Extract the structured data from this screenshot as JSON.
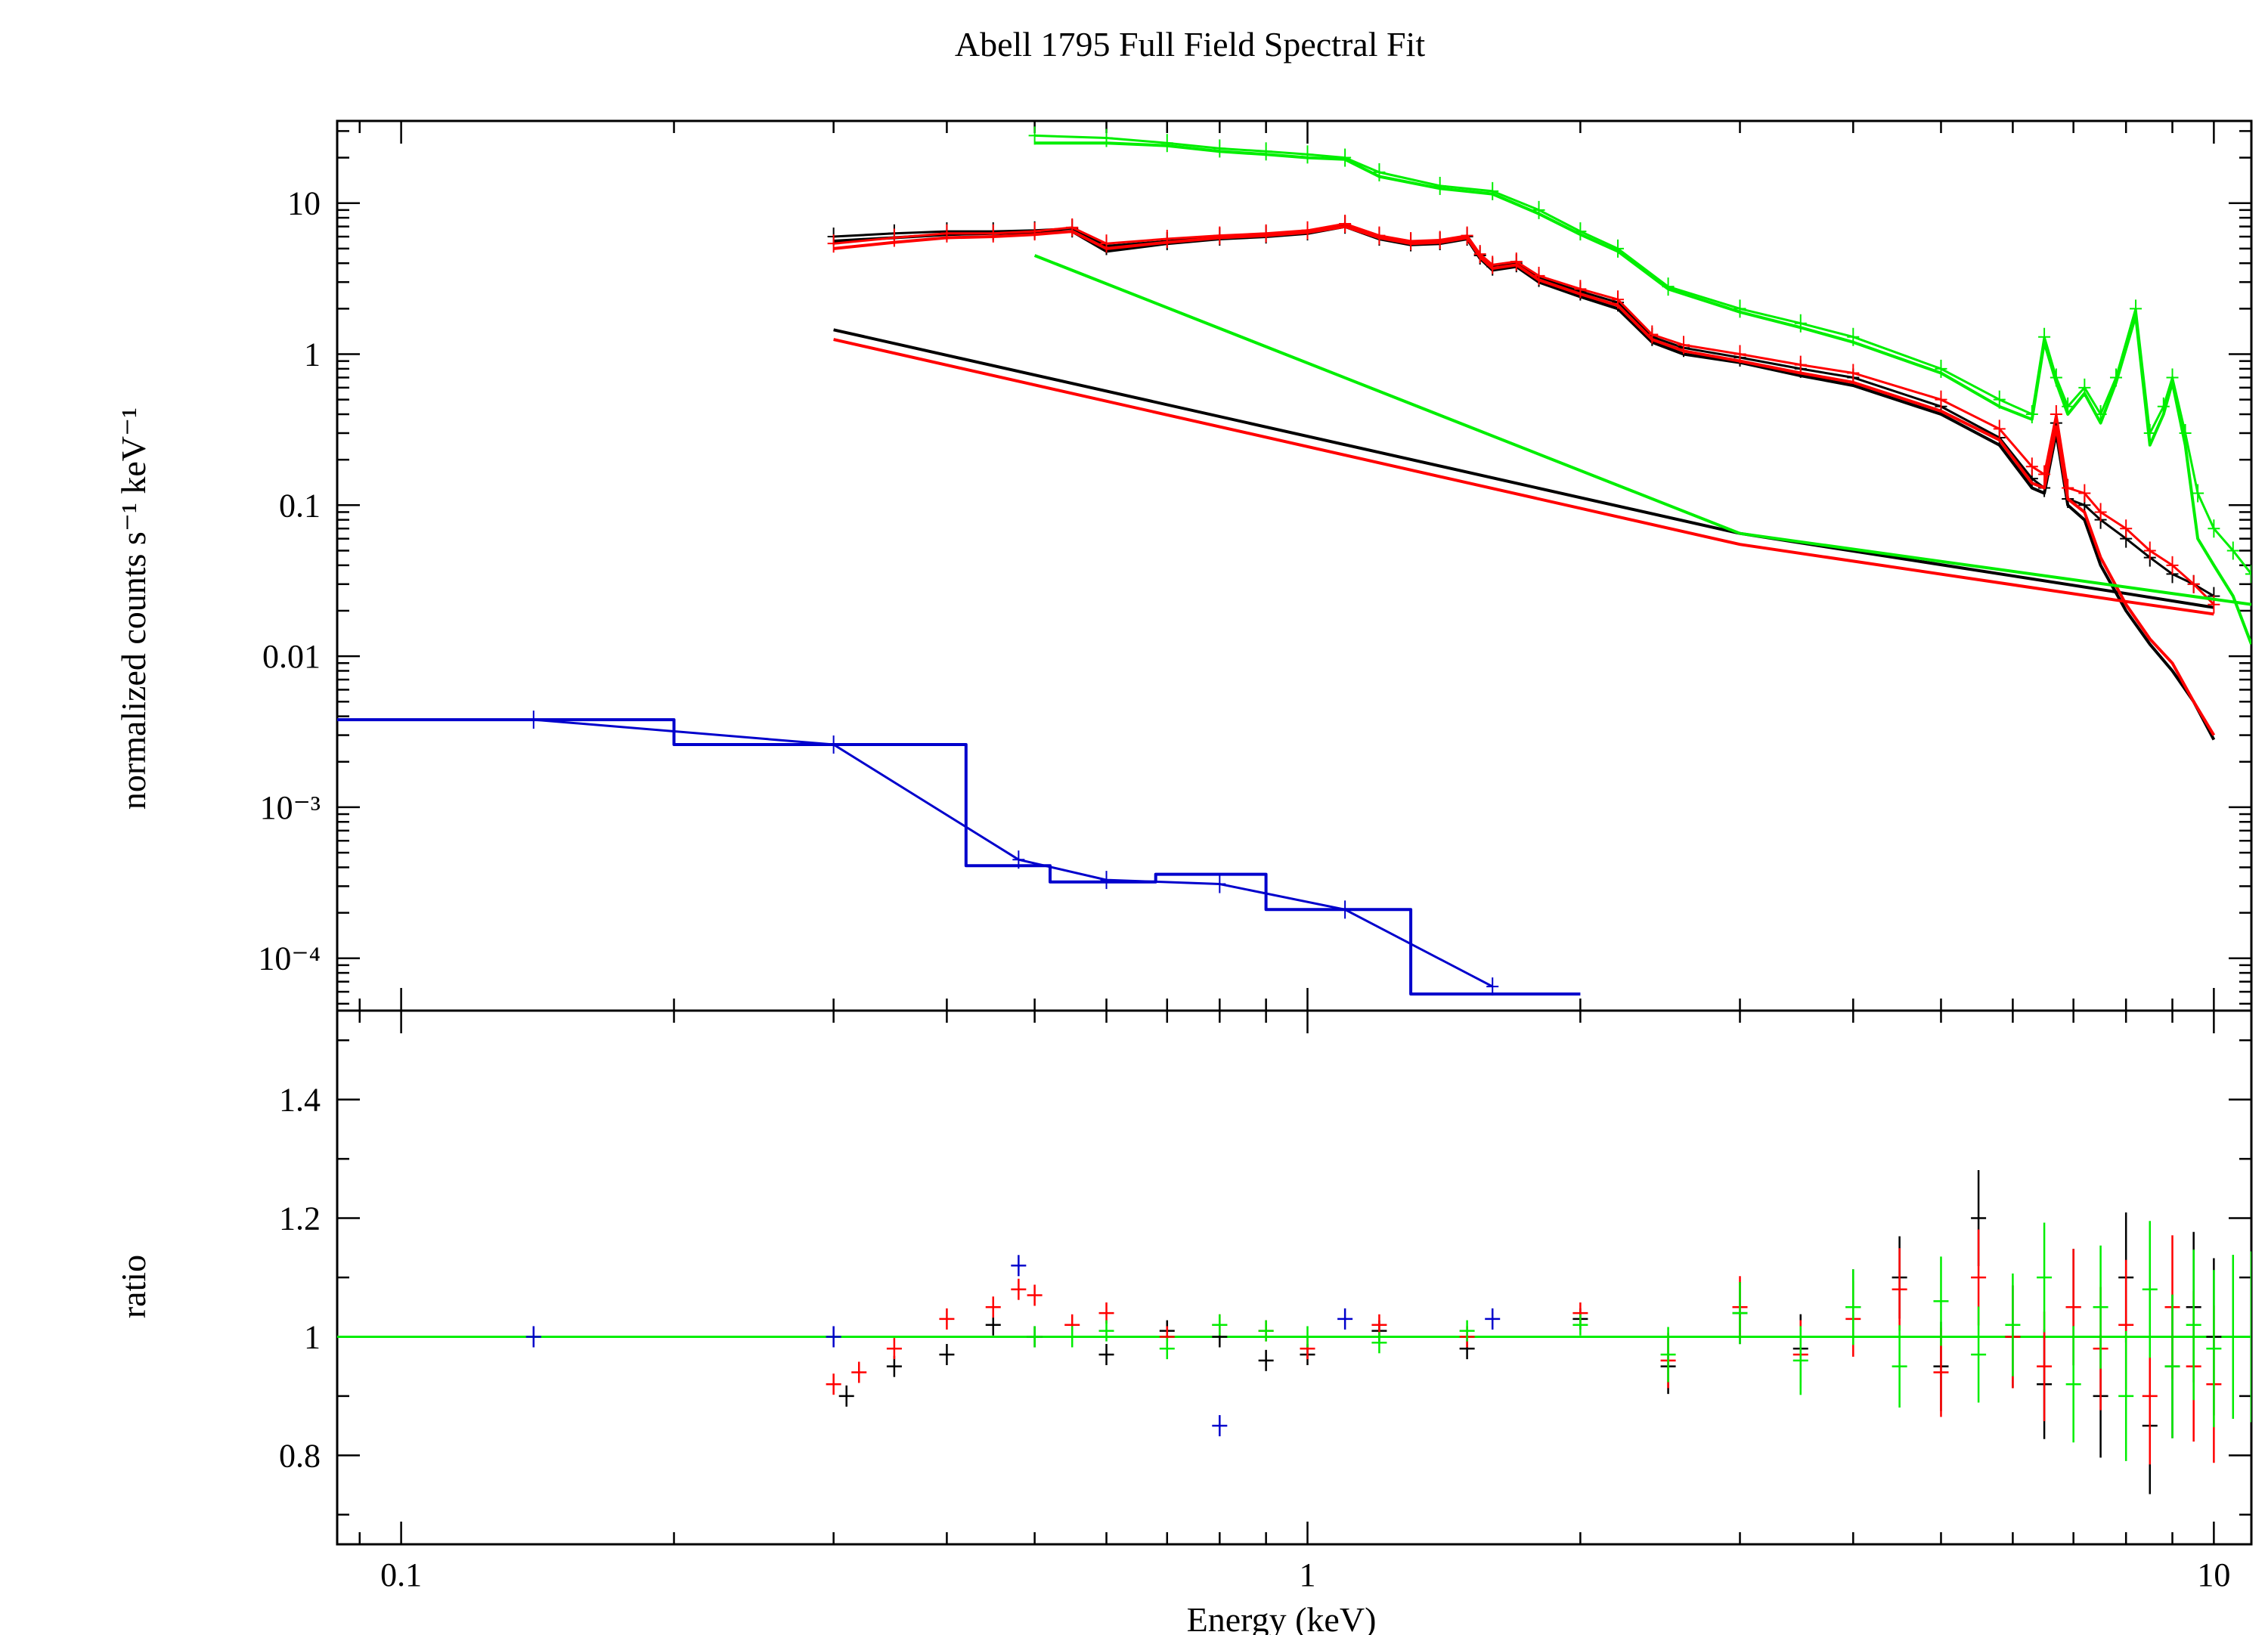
{
  "chart_data": {
    "type": "line",
    "title": "Abell 1795 Full Field Spectral Fit",
    "xlabel": "Energy (keV)",
    "x_scale": "log",
    "xlim": [
      0.085,
      11
    ],
    "x_ticks": [
      0.1,
      1,
      10
    ],
    "x_tick_labels": [
      "0.1",
      "1",
      "10"
    ],
    "panels": [
      {
        "name": "spectrum",
        "ylabel": "normalized counts s⁻¹ keV⁻¹",
        "y_scale": "log",
        "ylim": [
          4.5e-05,
          35
        ],
        "y_ticks": [
          0.0001,
          0.001,
          0.01,
          0.1,
          1,
          10
        ],
        "y_tick_labels": [
          "10⁻⁴",
          "10⁻³",
          "0.01",
          "0.1",
          "1",
          "10"
        ],
        "series": [
          {
            "color": "#000000",
            "kind": "data",
            "x": [
              0.3,
              0.35,
              0.4,
              0.45,
              0.5,
              0.55,
              0.6,
              0.7,
              0.8,
              0.9,
              1.0,
              1.1,
              1.2,
              1.3,
              1.4,
              1.5,
              1.55,
              1.6,
              1.7,
              1.8,
              2.0,
              2.2,
              2.4,
              2.6,
              3.0,
              3.5,
              4.0,
              5.0,
              5.8,
              6.3,
              6.5,
              6.7,
              6.9,
              7.2,
              7.5,
              8.0,
              8.5,
              9.0,
              9.5,
              10.0
            ],
            "y": [
              6.0,
              6.3,
              6.5,
              6.5,
              6.6,
              6.8,
              5.2,
              5.6,
              6.0,
              6.2,
              6.5,
              7.2,
              6.0,
              5.5,
              5.6,
              6.0,
              4.5,
              3.8,
              4.0,
              3.2,
              2.6,
              2.2,
              1.3,
              1.1,
              0.95,
              0.8,
              0.7,
              0.45,
              0.28,
              0.15,
              0.13,
              0.35,
              0.11,
              0.1,
              0.08,
              0.06,
              0.045,
              0.035,
              0.03,
              0.025
            ]
          },
          {
            "color": "#000000",
            "kind": "model",
            "x": [
              0.3,
              0.35,
              0.4,
              0.45,
              0.5,
              0.55,
              0.6,
              0.7,
              0.8,
              0.9,
              1.0,
              1.1,
              1.2,
              1.3,
              1.4,
              1.5,
              1.55,
              1.6,
              1.7,
              1.8,
              2.0,
              2.2,
              2.4,
              2.6,
              3.0,
              3.5,
              4.0,
              5.0,
              5.8,
              6.3,
              6.5,
              6.7,
              6.9,
              7.2,
              7.5,
              8.0,
              8.5,
              9.0,
              9.5,
              10.0
            ],
            "y": [
              5.6,
              5.9,
              6.2,
              6.3,
              6.4,
              6.5,
              4.8,
              5.4,
              5.8,
              6.0,
              6.3,
              7.0,
              5.8,
              5.3,
              5.4,
              5.8,
              4.3,
              3.6,
              3.8,
              3.0,
              2.4,
              2.0,
              1.2,
              1.0,
              0.88,
              0.72,
              0.62,
              0.4,
              0.25,
              0.13,
              0.12,
              0.3,
              0.1,
              0.08,
              0.04,
              0.02,
              0.012,
              0.008,
              0.005,
              0.0028
            ]
          },
          {
            "color": "#000000",
            "kind": "model",
            "x": [
              0.3,
              3.0,
              8.0,
              10.0
            ],
            "y": [
              1.45,
              0.065,
              0.026,
              0.021
            ]
          },
          {
            "color": "#ff0000",
            "kind": "data",
            "x": [
              0.3,
              0.35,
              0.4,
              0.45,
              0.5,
              0.55,
              0.6,
              0.7,
              0.8,
              0.9,
              1.0,
              1.1,
              1.2,
              1.3,
              1.4,
              1.5,
              1.55,
              1.6,
              1.7,
              1.8,
              2.0,
              2.2,
              2.4,
              2.6,
              3.0,
              3.5,
              4.0,
              5.0,
              5.8,
              6.3,
              6.5,
              6.7,
              6.9,
              7.2,
              7.5,
              8.0,
              8.5,
              9.0,
              9.5,
              10.0
            ],
            "y": [
              5.4,
              5.9,
              6.3,
              6.3,
              6.5,
              6.9,
              5.4,
              5.8,
              6.1,
              6.3,
              6.6,
              7.3,
              6.1,
              5.6,
              5.7,
              6.1,
              4.6,
              3.9,
              4.1,
              3.3,
              2.7,
              2.3,
              1.35,
              1.15,
              1.0,
              0.85,
              0.75,
              0.5,
              0.32,
              0.18,
              0.16,
              0.4,
              0.13,
              0.12,
              0.09,
              0.07,
              0.05,
              0.04,
              0.03,
              0.022
            ]
          },
          {
            "color": "#ff0000",
            "kind": "model",
            "x": [
              0.3,
              0.35,
              0.4,
              0.45,
              0.5,
              0.55,
              0.6,
              0.7,
              0.8,
              0.9,
              1.0,
              1.1,
              1.2,
              1.3,
              1.4,
              1.5,
              1.55,
              1.6,
              1.7,
              1.8,
              2.0,
              2.2,
              2.4,
              2.6,
              3.0,
              3.5,
              4.0,
              5.0,
              5.8,
              6.3,
              6.5,
              6.7,
              6.9,
              7.2,
              7.5,
              8.0,
              8.5,
              9.0,
              9.5,
              10.0
            ],
            "y": [
              5.0,
              5.5,
              5.9,
              6.0,
              6.2,
              6.5,
              5.0,
              5.5,
              5.9,
              6.1,
              6.4,
              7.0,
              5.9,
              5.4,
              5.5,
              5.9,
              4.4,
              3.7,
              3.9,
              3.1,
              2.5,
              2.1,
              1.25,
              1.05,
              0.9,
              0.75,
              0.65,
              0.42,
              0.27,
              0.14,
              0.13,
              0.33,
              0.11,
              0.09,
              0.045,
              0.022,
              0.013,
              0.009,
              0.005,
              0.003
            ]
          },
          {
            "color": "#ff0000",
            "kind": "model",
            "x": [
              0.3,
              3.0,
              8.0,
              10.0
            ],
            "y": [
              1.25,
              0.055,
              0.023,
              0.019
            ]
          },
          {
            "color": "#00ee00",
            "kind": "data",
            "x": [
              0.5,
              0.6,
              0.7,
              0.8,
              0.9,
              1.0,
              1.1,
              1.2,
              1.4,
              1.6,
              1.8,
              2.0,
              2.2,
              2.5,
              3.0,
              3.5,
              4.0,
              5.0,
              5.8,
              6.3,
              6.5,
              6.7,
              6.9,
              7.2,
              7.5,
              7.8,
              8.2,
              8.5,
              8.8,
              9.0,
              9.3,
              9.6,
              10.0,
              10.5,
              11.0
            ],
            "y": [
              28,
              27,
              25,
              23,
              22,
              21,
              20,
              16,
              13,
              12,
              9,
              6.5,
              5.0,
              2.8,
              2.0,
              1.6,
              1.3,
              0.8,
              0.5,
              0.4,
              1.3,
              0.7,
              0.45,
              0.6,
              0.4,
              0.7,
              2.0,
              0.3,
              0.45,
              0.7,
              0.3,
              0.12,
              0.07,
              0.05,
              0.035
            ]
          },
          {
            "color": "#00ee00",
            "kind": "model",
            "x": [
              0.5,
              0.6,
              0.7,
              0.8,
              0.9,
              1.0,
              1.1,
              1.2,
              1.4,
              1.6,
              1.8,
              2.0,
              2.2,
              2.5,
              3.0,
              3.5,
              4.0,
              5.0,
              5.8,
              6.3,
              6.5,
              6.7,
              6.9,
              7.2,
              7.5,
              7.8,
              8.2,
              8.5,
              8.8,
              9.0,
              9.3,
              9.6,
              10.0,
              10.5,
              11.0
            ],
            "y": [
              25,
              25,
              24,
              22,
              21,
              20,
              19.5,
              15,
              12.5,
              11.5,
              8.5,
              6.2,
              4.8,
              2.7,
              1.9,
              1.5,
              1.2,
              0.75,
              0.45,
              0.37,
              1.2,
              0.65,
              0.4,
              0.55,
              0.35,
              0.65,
              1.8,
              0.25,
              0.4,
              0.65,
              0.25,
              0.06,
              0.04,
              0.025,
              0.012
            ]
          },
          {
            "color": "#00ee00",
            "kind": "model",
            "x": [
              0.5,
              3.0,
              11.0
            ],
            "y": [
              4.5,
              0.065,
              0.022
            ]
          },
          {
            "color": "#0000cc",
            "kind": "data",
            "x": [
              0.14,
              0.3,
              0.48,
              0.6,
              0.8,
              1.1,
              1.6
            ],
            "y": [
              0.0038,
              0.0026,
              0.00045,
              0.00033,
              0.00031,
              0.00021,
              6.5e-05
            ]
          },
          {
            "color": "#0000cc",
            "kind": "model",
            "step": true,
            "x": [
              0.085,
              0.2,
              0.2,
              0.42,
              0.42,
              0.52,
              0.52,
              0.68,
              0.68,
              0.9,
              0.9,
              1.3,
              1.3,
              2.0
            ],
            "y": [
              0.0038,
              0.0038,
              0.0026,
              0.0026,
              0.00041,
              0.00041,
              0.00032,
              0.00032,
              0.00036,
              0.00036,
              0.00021,
              0.00021,
              5.8e-05,
              5.8e-05
            ]
          }
        ]
      },
      {
        "name": "ratio",
        "ylabel": "ratio",
        "y_scale": "linear",
        "ylim": [
          0.65,
          1.55
        ],
        "y_ticks": [
          0.8,
          1,
          1.2,
          1.4
        ],
        "y_tick_labels": [
          "0.8",
          "1",
          "1.2",
          "1.4"
        ],
        "reference_line": 1,
        "series": [
          {
            "color": "#000000",
            "x": [
              0.31,
              0.35,
              0.4,
              0.45,
              0.5,
              0.6,
              0.7,
              0.8,
              0.9,
              1.0,
              1.2,
              1.5,
              2.0,
              2.5,
              3.0,
              3.5,
              4.0,
              4.5,
              5.0,
              5.5,
              6.0,
              6.5,
              7.0,
              7.5,
              8.0,
              8.5,
              9.0,
              9.5,
              10.0
            ],
            "y": [
              0.9,
              0.95,
              0.97,
              1.02,
              1.0,
              0.97,
              1.01,
              1.0,
              0.96,
              0.97,
              1.01,
              0.98,
              1.03,
              0.95,
              1.04,
              0.98,
              1.05,
              1.1,
              0.95,
              1.2,
              1.0,
              0.92,
              1.05,
              0.9,
              1.1,
              0.85,
              0.95,
              1.05,
              1.0
            ]
          },
          {
            "color": "#ff0000",
            "x": [
              0.3,
              0.32,
              0.35,
              0.4,
              0.45,
              0.48,
              0.5,
              0.55,
              0.6,
              0.7,
              0.8,
              0.9,
              1.0,
              1.2,
              1.5,
              2.0,
              2.5,
              3.0,
              3.5,
              4.0,
              4.5,
              5.0,
              5.5,
              6.0,
              6.5,
              7.0,
              7.5,
              8.0,
              8.5,
              9.0,
              9.5,
              10.0
            ],
            "y": [
              0.92,
              0.94,
              0.98,
              1.03,
              1.05,
              1.08,
              1.07,
              1.02,
              1.04,
              1.0,
              1.02,
              1.01,
              0.98,
              1.02,
              1.0,
              1.04,
              0.96,
              1.05,
              0.97,
              1.03,
              1.08,
              0.94,
              1.1,
              1.0,
              0.95,
              1.05,
              0.98,
              1.02,
              0.9,
              1.05,
              0.95,
              0.92
            ]
          },
          {
            "color": "#00ee00",
            "x": [
              0.5,
              0.55,
              0.6,
              0.7,
              0.8,
              0.9,
              1.0,
              1.2,
              1.5,
              2.0,
              2.5,
              3.0,
              3.5,
              4.0,
              4.5,
              5.0,
              5.5,
              6.0,
              6.5,
              7.0,
              7.5,
              8.0,
              8.5,
              9.0,
              9.5,
              10.0,
              10.5,
              11.0
            ],
            "y": [
              1.0,
              1.0,
              1.01,
              0.98,
              1.02,
              1.01,
              1.0,
              0.99,
              1.01,
              1.02,
              0.97,
              1.04,
              0.96,
              1.05,
              0.95,
              1.06,
              0.97,
              1.02,
              1.1,
              0.92,
              1.05,
              0.9,
              1.08,
              0.95,
              1.02,
              0.98,
              1.0,
              1.0
            ]
          },
          {
            "color": "#0000cc",
            "x": [
              0.14,
              0.3,
              0.48,
              0.8,
              1.1,
              1.6
            ],
            "y": [
              1.0,
              1.0,
              1.12,
              0.85,
              1.03,
              1.03
            ]
          }
        ]
      }
    ]
  }
}
